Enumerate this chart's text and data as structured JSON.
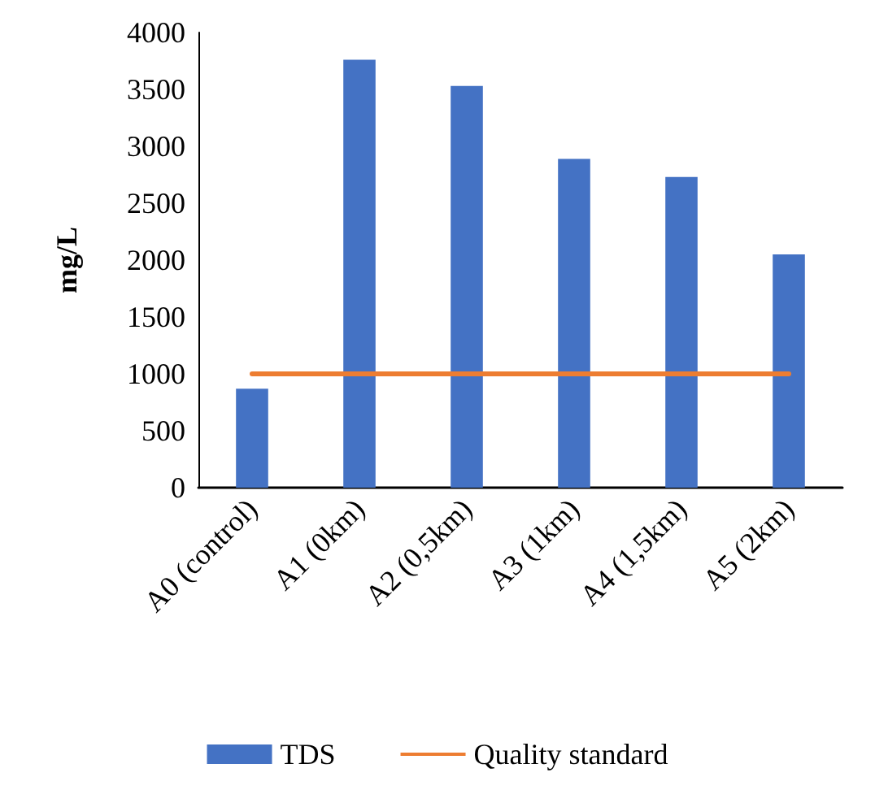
{
  "chart_data": {
    "type": "bar",
    "ylabel": "mg/L",
    "categories": [
      "A0 (control)",
      "A1 (0km)",
      "A2 (0,5km)",
      "A3 (1km)",
      "A4 (1,5km)",
      "A5 (2km)"
    ],
    "series": [
      {
        "name": "TDS",
        "color": "#4472c4",
        "values": [
          870,
          3760,
          3530,
          2890,
          2730,
          2050
        ]
      },
      {
        "name": "Quality standard",
        "type": "line",
        "color": "#ed7d31",
        "values": [
          1000,
          1000,
          1000,
          1000,
          1000,
          1000
        ]
      }
    ],
    "ylim": [
      0,
      4000
    ],
    "yticks": [
      0,
      500,
      1000,
      1500,
      2000,
      2500,
      3000,
      3500,
      4000
    ],
    "grid": false,
    "legend": "bottom",
    "marker": "none"
  }
}
